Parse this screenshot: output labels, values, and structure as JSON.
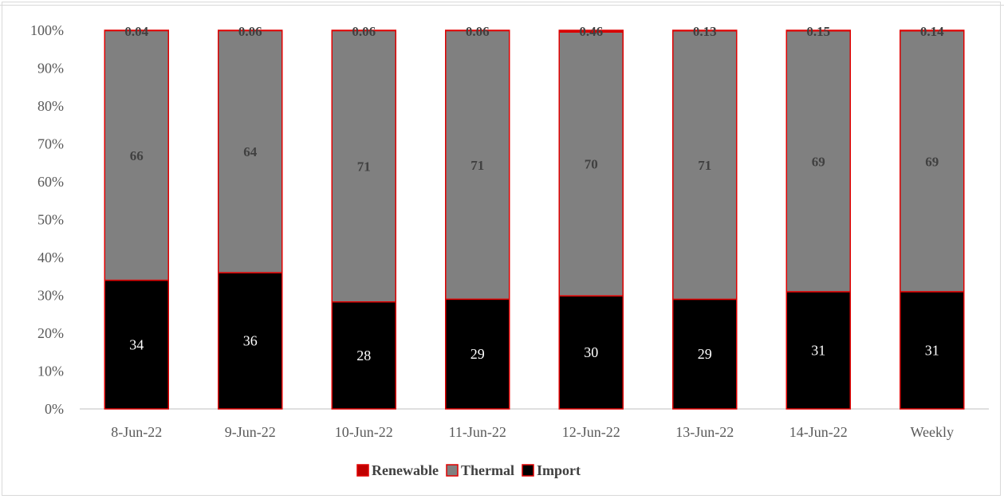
{
  "chart_data": {
    "type": "bar",
    "stacked": "percent",
    "categories": [
      "8-Jun-22",
      "9-Jun-22",
      "10-Jun-22",
      "11-Jun-22",
      "12-Jun-22",
      "13-Jun-22",
      "14-Jun-22",
      "Weekly"
    ],
    "series": [
      {
        "name": "Import",
        "values": [
          34,
          36,
          28,
          29,
          30,
          29,
          31,
          31
        ],
        "labels": [
          "34",
          "36",
          "28",
          "29",
          "30",
          "29",
          "31",
          "31"
        ],
        "color": "#000000"
      },
      {
        "name": "Thermal",
        "values": [
          66,
          64,
          71,
          71,
          70,
          71,
          69,
          69
        ],
        "labels": [
          "66",
          "64",
          "71",
          "71",
          "70",
          "71",
          "69",
          "69"
        ],
        "color": "#808080"
      },
      {
        "name": "Renewable",
        "values": [
          0.04,
          0.06,
          0.06,
          0.06,
          0.46,
          0.13,
          0.15,
          0.14
        ],
        "labels": [
          "0.04",
          "0.06",
          "0.06",
          "0.06",
          "0.46",
          "0.13",
          "0.15",
          "0.14"
        ],
        "color": "#c00000"
      }
    ],
    "legend": [
      "Renewable",
      "Thermal",
      "Import"
    ],
    "legend_position": "bottom",
    "y_ticks": [
      "0%",
      "10%",
      "20%",
      "30%",
      "40%",
      "50%",
      "60%",
      "70%",
      "80%",
      "90%",
      "100%"
    ],
    "ylim": [
      0,
      100
    ],
    "grid": false,
    "bar_outline_color": "#e00000"
  }
}
